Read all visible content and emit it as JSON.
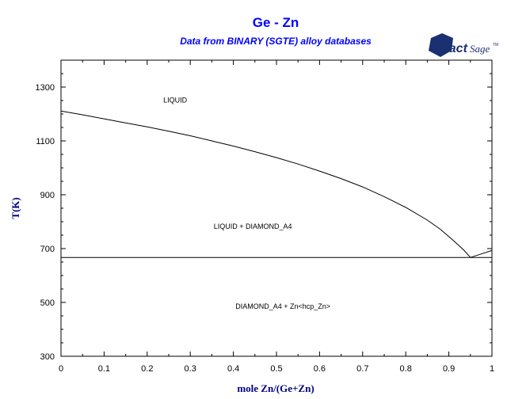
{
  "colors": {
    "title": "#0000ff",
    "subtitle": "#0000ff",
    "axis_title": "#000080",
    "logo": "#1a3070",
    "line": "#000000"
  },
  "logo": {
    "brand_main": "Fact",
    "brand_sub": "Sage",
    "trademark": "TM",
    "icon": "factsage-logo-icon"
  },
  "chart_data": {
    "type": "line",
    "title": "Ge - Zn",
    "subtitle": "Data from BINARY (SGTE) alloy databases",
    "xlabel": "mole Zn/(Ge+Zn)",
    "ylabel": "T(K)",
    "xlim": [
      0,
      1
    ],
    "ylim": [
      300,
      1400
    ],
    "x_ticks": [
      0,
      0.1,
      0.2,
      0.3,
      0.4,
      0.5,
      0.6,
      0.7,
      0.8,
      0.9,
      1
    ],
    "x_tick_labels": [
      "0",
      "0.1",
      "0.2",
      "0.3",
      "0.4",
      "0.5",
      "0.6",
      "0.7",
      "0.8",
      "0.9",
      "1"
    ],
    "y_ticks": [
      300,
      500,
      700,
      900,
      1100,
      1300
    ],
    "y_tick_labels": [
      "300",
      "500",
      "700",
      "900",
      "1100",
      "1300"
    ],
    "grid": false,
    "series": [
      {
        "id": "liquidus-diamond",
        "x": [
          0,
          0.05,
          0.1,
          0.15,
          0.2,
          0.25,
          0.3,
          0.35,
          0.4,
          0.45,
          0.5,
          0.55,
          0.6,
          0.65,
          0.7,
          0.75,
          0.8,
          0.85,
          0.88,
          0.91,
          0.935,
          0.95
        ],
        "y": [
          1211,
          1197,
          1182,
          1167,
          1152,
          1136,
          1119,
          1100,
          1081,
          1060,
          1038,
          1014,
          988,
          960,
          929,
          893,
          853,
          806,
          772,
          731,
          694,
          667
        ]
      },
      {
        "id": "liquidus-zn",
        "x": [
          0.95,
          0.975,
          1
        ],
        "y": [
          667,
          680,
          693
        ]
      },
      {
        "id": "eutectic-line",
        "x": [
          0,
          1
        ],
        "y": [
          667,
          667
        ]
      }
    ],
    "annotations": [
      {
        "text": "LIQUID",
        "x": 0.265,
        "y": 1252
      },
      {
        "text": "LIQUID + DIAMOND_A4",
        "x": 0.445,
        "y": 782
      },
      {
        "text": "DIAMOND_A4 + Zn<hcp_Zn>",
        "x": 0.515,
        "y": 485
      }
    ]
  }
}
